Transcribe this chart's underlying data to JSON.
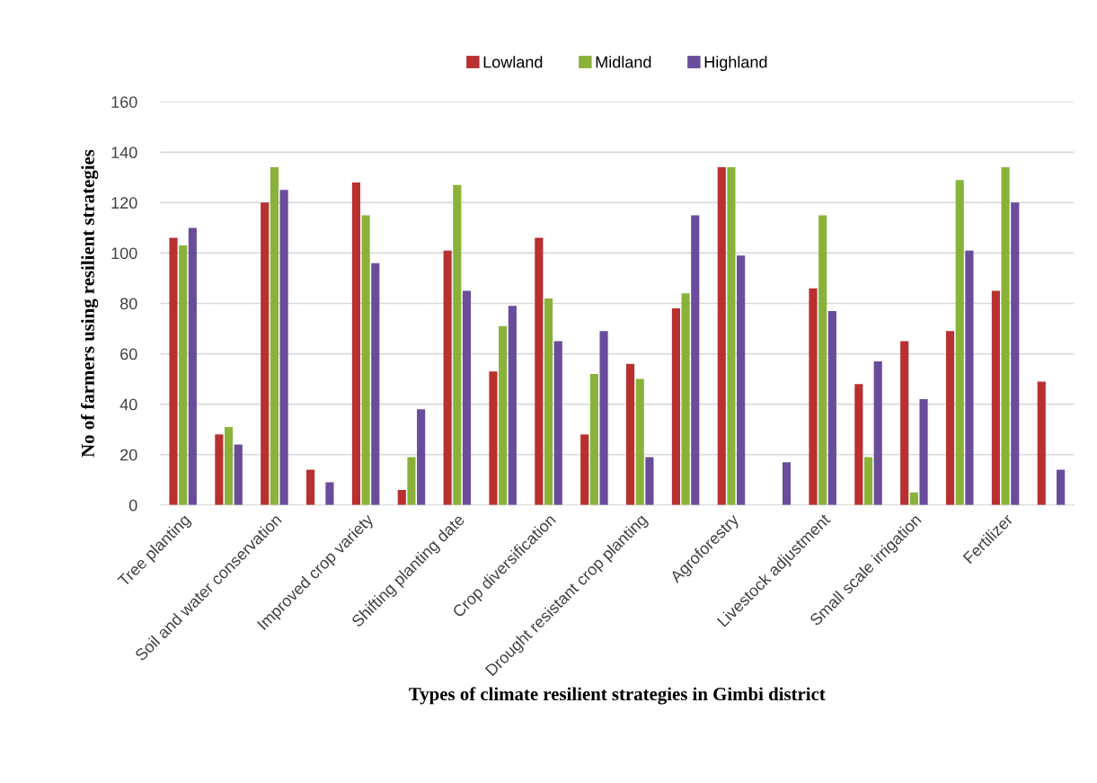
{
  "chart_data": {
    "type": "bar",
    "xlabel": "Types of climate resilient strategies in Gimbi district",
    "ylabel": "No of farmers using resilient strategies",
    "categories": [
      "Tree planting",
      null,
      "Soil and water conservation",
      null,
      "Improved crop variety",
      null,
      "Shifting planting date",
      null,
      "Crop diversification",
      null,
      "Drought resistant crop planting",
      null,
      "Agroforestry",
      null,
      "Livestock adjustment",
      null,
      "Small scale irrigation",
      null,
      "Fertilizer",
      null
    ],
    "series": [
      {
        "name": "Lowland",
        "color": "#b83030",
        "values": [
          106,
          28,
          120,
          14,
          128,
          6,
          101,
          53,
          106,
          28,
          56,
          78,
          134,
          null,
          86,
          48,
          65,
          69,
          85,
          49
        ]
      },
      {
        "name": "Midland",
        "color": "#8ab23a",
        "values": [
          103,
          31,
          134,
          null,
          115,
          19,
          127,
          71,
          82,
          52,
          50,
          84,
          134,
          null,
          115,
          19,
          5,
          129,
          134,
          null
        ]
      },
      {
        "name": "Highland",
        "color": "#6a4c9c",
        "values": [
          110,
          24,
          125,
          9,
          96,
          38,
          85,
          79,
          65,
          69,
          19,
          115,
          99,
          17,
          77,
          57,
          42,
          101,
          120,
          14
        ]
      }
    ],
    "ylim": [
      0,
      160
    ],
    "yticks": [
      0,
      20,
      40,
      60,
      80,
      100,
      120,
      140,
      160
    ],
    "grid": "y",
    "legend": "top"
  }
}
